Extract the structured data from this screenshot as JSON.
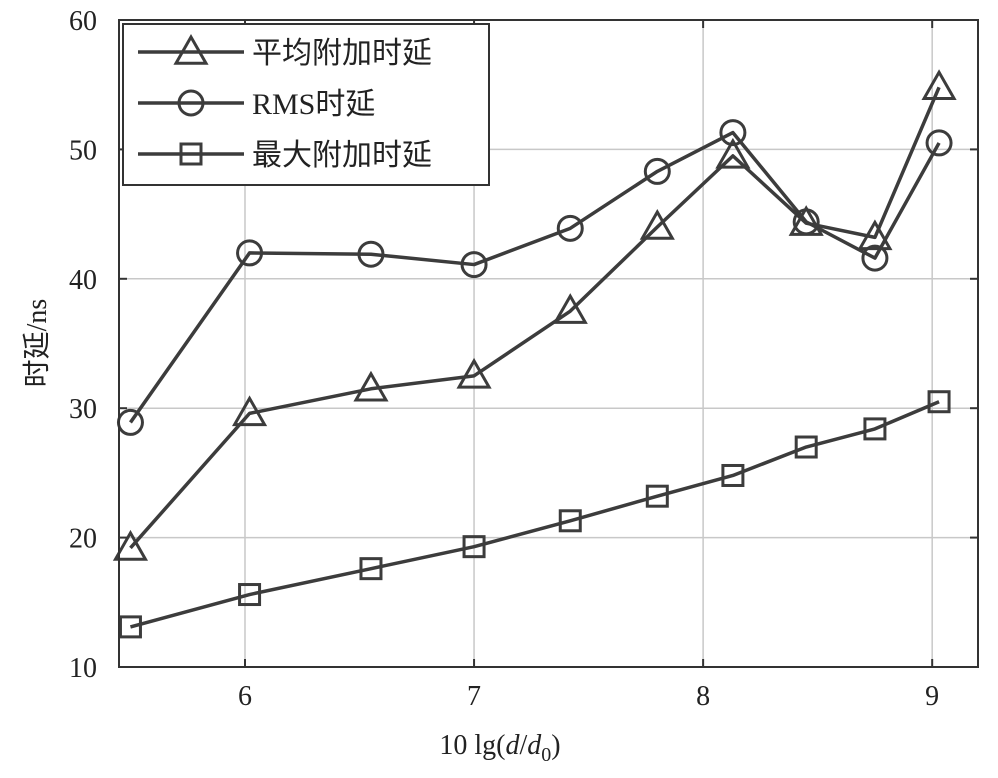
{
  "chart_data": {
    "type": "line",
    "xlabel": "10 lg(d/d0)",
    "ylabel": "时延/ns",
    "xlim": [
      5.45,
      9.2
    ],
    "ylim": [
      10,
      60
    ],
    "xticks": [
      6,
      7,
      8,
      9
    ],
    "yticks": [
      10,
      20,
      30,
      40,
      50,
      60
    ],
    "grid": true,
    "legend_position": "top-left",
    "line_color": "#3c3c3c",
    "series": [
      {
        "name": "平均附加时延",
        "marker": "triangle",
        "x": [
          5.5,
          6.02,
          6.55,
          7.0,
          7.42,
          7.8,
          8.13,
          8.45,
          8.75,
          9.03
        ],
        "y": [
          19.2,
          29.6,
          31.5,
          32.5,
          37.5,
          44.0,
          49.5,
          44.3,
          43.2,
          54.8
        ]
      },
      {
        "name": "RMS时延",
        "marker": "circle",
        "x": [
          5.5,
          6.02,
          6.55,
          7.0,
          7.42,
          7.8,
          8.13,
          8.45,
          8.75,
          9.03
        ],
        "y": [
          28.9,
          42.0,
          41.9,
          41.1,
          43.9,
          48.3,
          51.3,
          44.4,
          41.6,
          50.5
        ]
      },
      {
        "name": "最大附加时延",
        "marker": "square",
        "x": [
          5.5,
          6.02,
          6.55,
          7.0,
          7.42,
          7.8,
          8.13,
          8.45,
          8.75,
          9.03
        ],
        "y": [
          13.1,
          15.6,
          17.6,
          19.3,
          21.3,
          23.2,
          24.8,
          27.0,
          28.4,
          30.5
        ]
      }
    ]
  }
}
